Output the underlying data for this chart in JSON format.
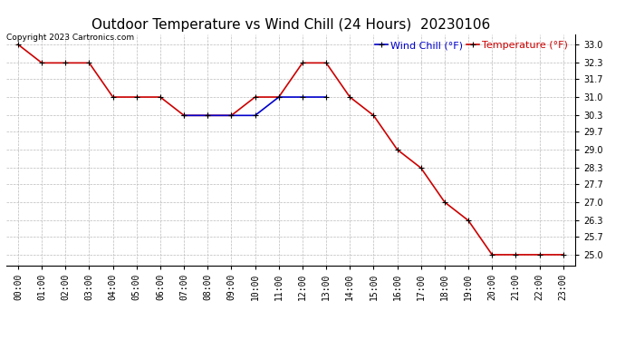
{
  "title": "Outdoor Temperature vs Wind Chill (24 Hours)  20230106",
  "copyright_text": "Copyright 2023 Cartronics.com",
  "legend_wind_chill": "Wind Chill (°F)",
  "legend_temperature": "Temperature (°F)",
  "hours": [
    "00:00",
    "01:00",
    "02:00",
    "03:00",
    "04:00",
    "05:00",
    "06:00",
    "07:00",
    "08:00",
    "09:00",
    "10:00",
    "11:00",
    "12:00",
    "13:00",
    "14:00",
    "15:00",
    "16:00",
    "17:00",
    "18:00",
    "19:00",
    "20:00",
    "21:00",
    "22:00",
    "23:00"
  ],
  "temperature": [
    33.0,
    32.3,
    32.3,
    32.3,
    31.0,
    31.0,
    31.0,
    30.3,
    30.3,
    30.3,
    31.0,
    31.0,
    32.3,
    32.3,
    31.0,
    30.3,
    29.0,
    28.3,
    27.0,
    26.3,
    25.0,
    25.0,
    25.0,
    25.0
  ],
  "wind_chill_x": [
    7,
    8,
    9,
    10,
    11,
    12,
    13
  ],
  "wind_chill_y": [
    30.3,
    30.3,
    30.3,
    30.3,
    31.0,
    31.0,
    31.0
  ],
  "temp_color": "#cc0000",
  "wind_color": "#0000cc",
  "marker_color": "#000000",
  "bg_color": "#ffffff",
  "grid_color": "#bbbbbb",
  "ylim_min": 24.6,
  "ylim_max": 33.4,
  "yticks": [
    25.0,
    25.7,
    26.3,
    27.0,
    27.7,
    28.3,
    29.0,
    29.7,
    30.3,
    31.0,
    31.7,
    32.3,
    33.0
  ],
  "title_fontsize": 11,
  "legend_fontsize": 8,
  "tick_fontsize": 7,
  "copyright_fontsize": 6.5
}
